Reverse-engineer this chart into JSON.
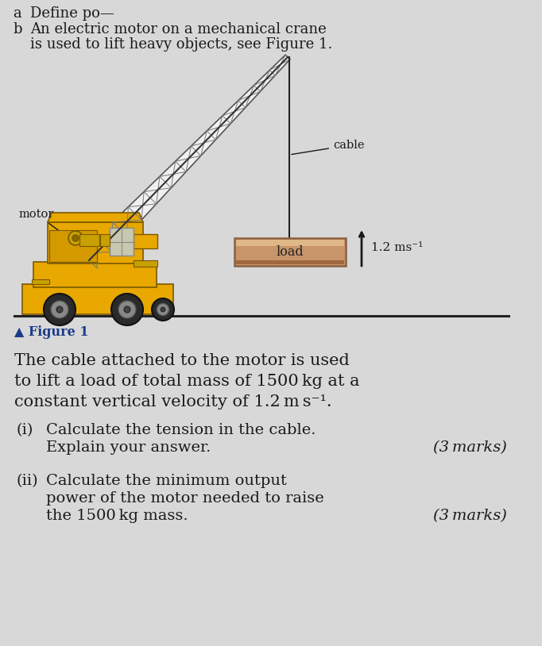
{
  "background_color": "#d8d8d8",
  "figure_label": "▲ Figure 1",
  "label_cable": "cable",
  "label_motor": "motor",
  "label_load": "load",
  "label_velocity": "1.2 ms⁻¹",
  "crane_yellow": "#E8A800",
  "crane_yellow2": "#F5C000",
  "crane_dark": "#8B7355",
  "load_fill": "#C8956A",
  "load_fill2": "#D4A876",
  "load_edge": "#8B6040",
  "text_color": "#1a1a1a",
  "figure_label_color": "#1a3a8a",
  "body_fontsize": 15,
  "q_fontsize": 14,
  "header_fontsize": 13
}
